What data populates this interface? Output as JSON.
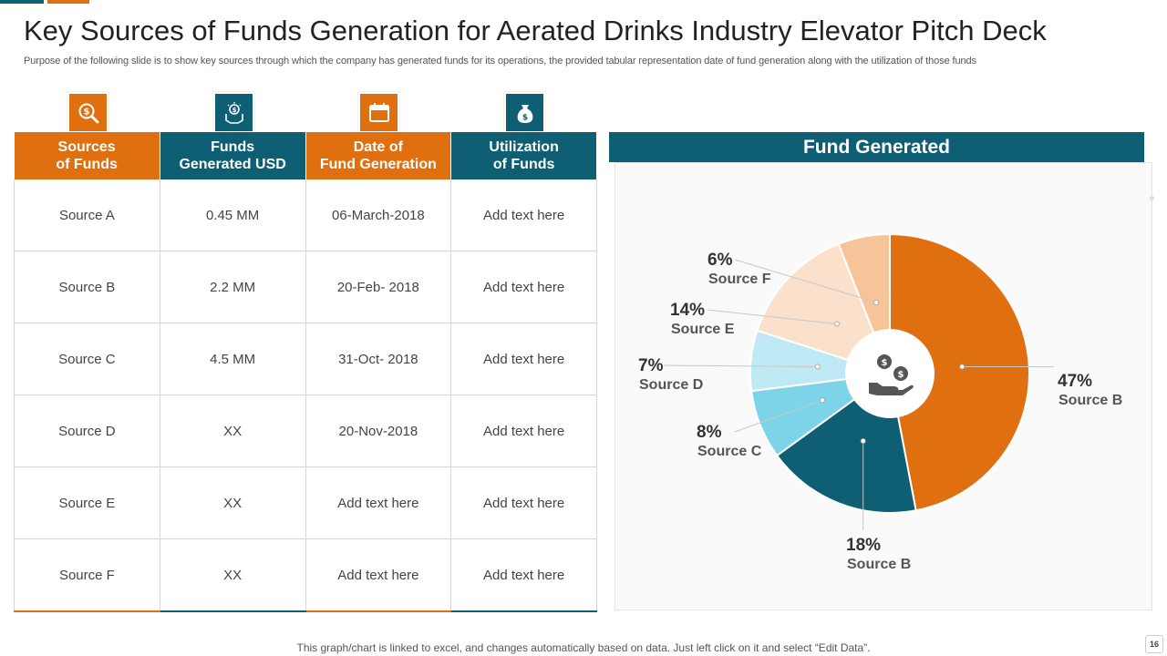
{
  "title": "Key Sources of Funds Generation for Aerated Drinks Industry Elevator Pitch Deck",
  "subtitle": "Purpose of the following slide is to show key sources  through which the company has generated funds for its operations, the  provided tabular representation date of fund generation along with the utilization of those funds",
  "table": {
    "headers": [
      {
        "line1": "Sources",
        "line2": "of Funds",
        "icon": "search-dollar-icon"
      },
      {
        "line1": "Funds",
        "line2": "Generated USD",
        "icon": "hand-money-icon"
      },
      {
        "line1": "Date of",
        "line2": "Fund Generation",
        "icon": "calendar-icon"
      },
      {
        "line1": "Utilization",
        "line2": "of Funds",
        "icon": "money-bag-icon"
      }
    ],
    "rows": [
      [
        "Source A",
        "0.45 MM",
        "06-March-2018",
        "Add text here"
      ],
      [
        "Source B",
        "2.2 MM",
        "20-Feb- 2018",
        "Add text here"
      ],
      [
        "Source C",
        "4.5 MM",
        "31-Oct- 2018",
        "Add text here"
      ],
      [
        "Source D",
        "XX",
        "20-Nov-2018",
        "Add text here"
      ],
      [
        "Source E",
        "XX",
        "Add text here",
        "Add text here"
      ],
      [
        "Source F",
        "XX",
        "Add text here",
        "Add text here"
      ]
    ]
  },
  "chart_data": {
    "type": "pie",
    "title": "Fund Generated",
    "donut": true,
    "slices": [
      {
        "label": "Source B",
        "percent_label": "47%",
        "value": 47,
        "color": "#e06f10"
      },
      {
        "label": "Source B",
        "percent_label": "18%",
        "value": 18,
        "color": "#0e5f73"
      },
      {
        "label": "Source C",
        "percent_label": "8%",
        "value": 8,
        "color": "#7dd3e8"
      },
      {
        "label": "Source D",
        "percent_label": "7%",
        "value": 7,
        "color": "#bfe9f5"
      },
      {
        "label": "Source E",
        "percent_label": "14%",
        "value": 14,
        "color": "#fbe1cc"
      },
      {
        "label": "Source F",
        "percent_label": "6%",
        "value": 6,
        "color": "#f7c49a"
      }
    ]
  },
  "footer": "This graph/chart is linked to excel,  and changes automatically based on data. Just left click on it and select “Edit Data”.",
  "page_number": "16"
}
